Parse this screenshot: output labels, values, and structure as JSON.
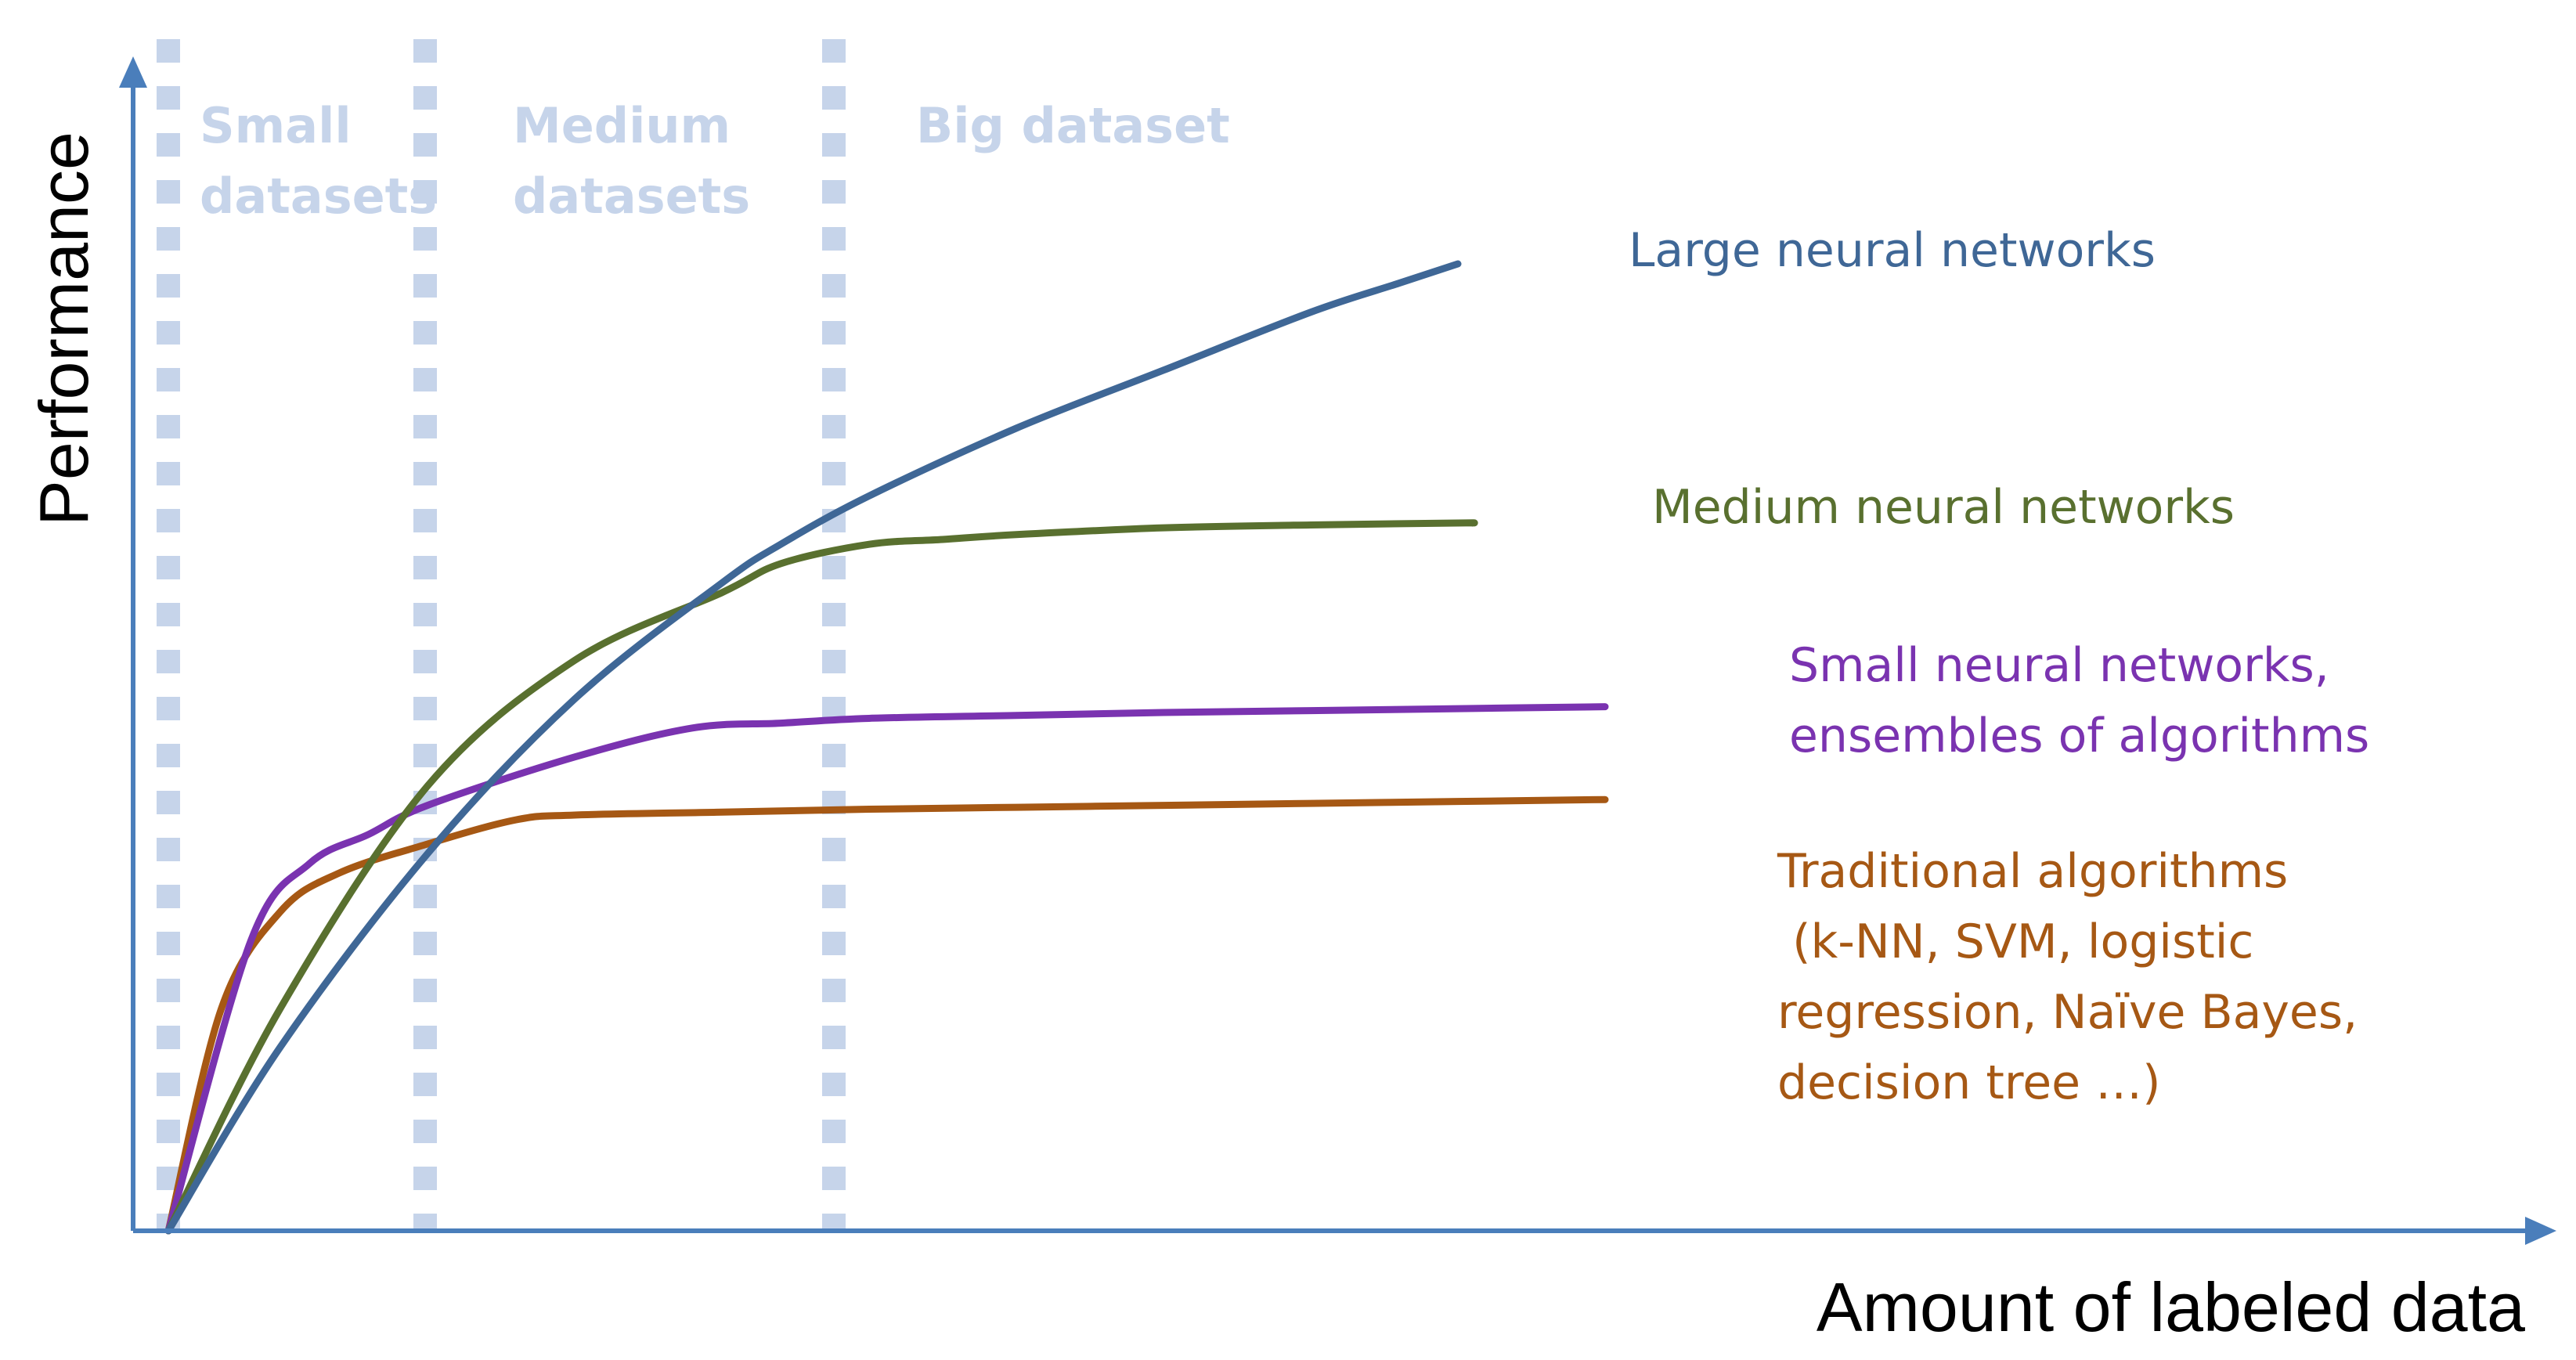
{
  "chart_data": {
    "type": "line",
    "title": "",
    "xlabel": "Amount of labeled data",
    "ylabel": "Performance",
    "xlim": [
      0,
      100
    ],
    "ylim": [
      0,
      100
    ],
    "grid": false,
    "axis_color": "#4a7ebb",
    "regions": [
      {
        "name_lines": [
          "Small",
          "datasets"
        ],
        "x_start": 0,
        "x_end": 16,
        "color": "#c6d4ea"
      },
      {
        "name_lines": [
          "Medium",
          "datasets"
        ],
        "x_start": 16,
        "x_end": 43,
        "color": "#c6d4ea"
      },
      {
        "name_lines": [
          "Big dataset"
        ],
        "x_start": 43,
        "x_end": 100,
        "color": "#c6d4ea"
      }
    ],
    "series": [
      {
        "name_lines": [
          "Large neural networks"
        ],
        "color": "#3f6796",
        "x": [
          2.4,
          10,
          20,
          30,
          40,
          44,
          50,
          60,
          70,
          80,
          86,
          90
        ],
        "y": [
          0,
          19,
          39,
          55,
          67,
          71,
          76,
          83,
          89,
          95,
          98,
          100
        ]
      },
      {
        "name_lines": [
          "Medium neural networks"
        ],
        "color": "#59702f",
        "x": [
          2.4,
          10,
          20,
          30,
          40,
          44,
          50,
          55,
          60,
          70,
          80,
          90,
          91
        ],
        "y": [
          0,
          23,
          46,
          59,
          66,
          69,
          71,
          71.5,
          72,
          72.7,
          73,
          73.2,
          73.2
        ]
      },
      {
        "name_lines": [
          "Small neural networks,",
          "ensembles of algorithms"
        ],
        "color": "#7a33b0",
        "x": [
          2.4,
          8,
          12,
          16,
          20,
          30,
          38,
          44,
          50,
          60,
          70,
          80,
          90,
          100
        ],
        "y": [
          0,
          30,
          38,
          41,
          44,
          49,
          52,
          52.5,
          53,
          53.3,
          53.6,
          53.8,
          54,
          54.2
        ]
      },
      {
        "name_lines": [
          "Traditional algorithms",
          " (k-NN, SVM, logistic",
          "regression, Naïve Bayes,",
          "decision tree …)"
        ],
        "color": "#a65814",
        "x": [
          2.4,
          6,
          10,
          14,
          20,
          26,
          30,
          40,
          50,
          60,
          70,
          80,
          90,
          100
        ],
        "y": [
          0,
          23,
          33,
          37,
          40,
          42.5,
          43,
          43.3,
          43.6,
          43.8,
          44,
          44.2,
          44.4,
          44.6
        ]
      }
    ]
  }
}
